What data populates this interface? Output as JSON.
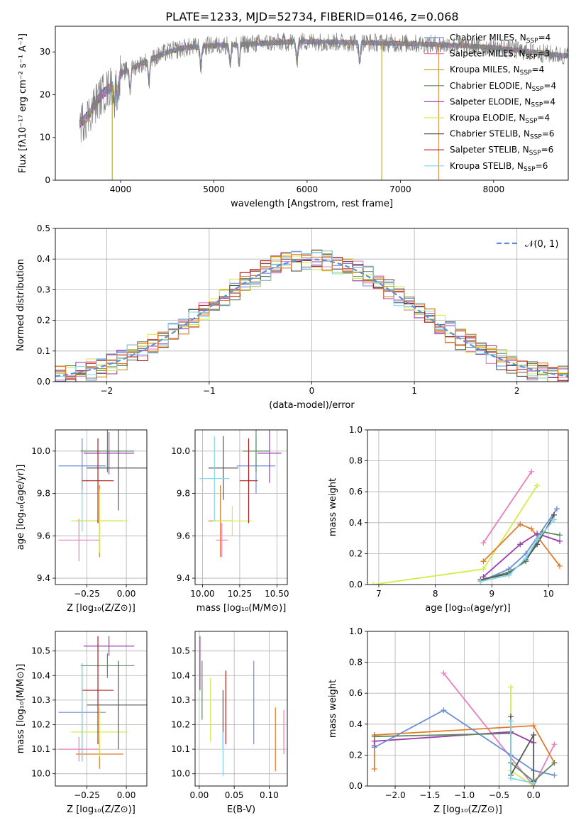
{
  "figure": {
    "title": "PLATE=1233, MJD=52734, FIBERID=0146, z=0.068"
  },
  "chart_data": [
    {
      "id": "spectrum",
      "type": "line",
      "xlabel": "wavelength [Angstrom, rest frame]",
      "ylabel": "Flux [fλ10⁻¹⁷ erg cm⁻² s⁻¹ A⁻¹]",
      "xlim": [
        3300,
        8800
      ],
      "ylim": [
        0,
        36
      ],
      "xticks": [
        4000,
        5000,
        6000,
        7000,
        8000
      ],
      "yticks": [
        0,
        10,
        20,
        30
      ],
      "observed_color": "#808080",
      "legend_position": "upper right",
      "series": [
        {
          "name": "Chabrier MILES, N_SSP=4",
          "color": "#6a8fd6"
        },
        {
          "name": "Salpeter MILES, N_SSP=3",
          "color": "#e57fbf"
        },
        {
          "name": "Kroupa MILES, N_SSP=4",
          "color": "#b59a17"
        },
        {
          "name": "Chabrier ELODIE, N_SSP=4",
          "color": "#5e8a5e"
        },
        {
          "name": "Salpeter ELODIE, N_SSP=4",
          "color": "#9b3db0"
        },
        {
          "name": "Kroupa ELODIE, N_SSP=4",
          "color": "#d4ec4a"
        },
        {
          "name": "Chabrier STELIB, N_SSP=6",
          "color": "#555555"
        },
        {
          "name": "Salpeter STELIB, N_SSP=6",
          "color": "#b01c1c"
        },
        {
          "name": "Kroupa STELIB, N_SSP=6",
          "color": "#7fd8e8"
        }
      ],
      "continuum": {
        "x": [
          3550,
          3600,
          3650,
          3700,
          3800,
          3900,
          4000,
          4100,
          4200,
          4300,
          4500,
          4700,
          5000,
          5300,
          5500,
          5800,
          6000,
          6300,
          6600,
          7000,
          7300,
          7600,
          7800,
          8000,
          8200,
          8400,
          8600,
          8800
        ],
        "y": [
          13,
          14,
          15,
          17,
          20,
          22,
          25,
          26,
          27,
          28,
          30,
          31,
          31.5,
          31.8,
          32,
          32.3,
          32.4,
          32.3,
          32.2,
          32,
          31.8,
          31.5,
          31.3,
          31,
          30.5,
          30,
          29.5,
          29
        ]
      }
    },
    {
      "id": "residuals",
      "type": "histogram",
      "xlabel": "(data-model)/error",
      "ylabel": "Normed distribution",
      "xlim": [
        -2.5,
        2.5
      ],
      "ylim": [
        0,
        0.5
      ],
      "xticks": [
        -2,
        -1,
        0,
        1,
        2
      ],
      "yticks": [
        0.0,
        0.1,
        0.2,
        0.3,
        0.4,
        0.5
      ],
      "grid": true,
      "reference": {
        "name": "𝒩(0, 1)",
        "color": "#5b8fd8"
      },
      "legend_position": "upper right"
    },
    {
      "id": "age_vs_Z",
      "type": "scatter",
      "xlabel": "Z [log₁₀(Z/Z⊙)]",
      "ylabel": "age  [log₁₀(age/yr)]",
      "xlim": [
        -0.45,
        0.13
      ],
      "ylim": [
        9.37,
        10.1
      ],
      "xticks": [
        -0.25,
        0.0
      ],
      "yticks": [
        9.4,
        9.6,
        9.8,
        10.0
      ],
      "grid": true,
      "points": [
        {
          "x": -0.28,
          "xerr": 0.15,
          "y": 9.93,
          "yerr": 0.13,
          "color": "#6a8fd6"
        },
        {
          "x": -0.3,
          "xerr": 0.13,
          "y": 9.58,
          "yerr": 0.1,
          "color": "#e57fbf"
        },
        {
          "x": -0.17,
          "xerr": 0.15,
          "y": 9.67,
          "yerr": 0.17,
          "color": "#e07b2a"
        },
        {
          "x": -0.12,
          "xerr": 0.17,
          "y": 10.0,
          "yerr": 0.1,
          "color": "#5e8a5e"
        },
        {
          "x": -0.11,
          "xerr": 0.16,
          "y": 9.99,
          "yerr": 0.1,
          "color": "#9b3db0"
        },
        {
          "x": -0.17,
          "xerr": 0.18,
          "y": 9.67,
          "yerr": 0.15,
          "color": "#d4ec4a"
        },
        {
          "x": -0.05,
          "xerr": 0.2,
          "y": 9.92,
          "yerr": 0.2,
          "color": "#555555"
        },
        {
          "x": -0.18,
          "xerr": 0.1,
          "y": 9.86,
          "yerr": 0.2,
          "color": "#b01c1c"
        },
        {
          "x": -0.28,
          "xerr": 0.0,
          "y": 9.72,
          "yerr": 0.1,
          "color": "#7fd8e8"
        }
      ]
    },
    {
      "id": "age_vs_mass",
      "type": "scatter",
      "xlabel": "mass [log₁₀(M/M⊙)]",
      "ylabel": "",
      "xlim": [
        9.95,
        10.57
      ],
      "ylim": [
        9.37,
        10.1
      ],
      "xticks": [
        10.0,
        10.25,
        10.5
      ],
      "yticks": [
        9.4,
        9.6,
        9.8,
        10.0
      ],
      "grid": true,
      "points": [
        {
          "x": 10.36,
          "xerr": 0.13,
          "y": 9.93,
          "yerr": 0.13,
          "color": "#6a8fd6"
        },
        {
          "x": 10.13,
          "xerr": 0.04,
          "y": 9.58,
          "yerr": 0.08,
          "color": "#e57fbf"
        },
        {
          "x": 10.12,
          "xerr": 0.08,
          "y": 9.67,
          "yerr": 0.17,
          "color": "#e07b2a"
        },
        {
          "x": 10.36,
          "xerr": 0.09,
          "y": 10.0,
          "yerr": 0.1,
          "color": "#5e8a5e"
        },
        {
          "x": 10.45,
          "xerr": 0.08,
          "y": 9.99,
          "yerr": 0.14,
          "color": "#9b3db0"
        },
        {
          "x": 10.2,
          "xerr": 0.13,
          "y": 9.67,
          "yerr": 0.07,
          "color": "#d4ec4a"
        },
        {
          "x": 10.14,
          "xerr": 0.1,
          "y": 9.92,
          "yerr": 0.15,
          "color": "#555555"
        },
        {
          "x": 10.31,
          "xerr": 0.06,
          "y": 9.86,
          "yerr": 0.2,
          "color": "#b01c1c"
        },
        {
          "x": 10.08,
          "xerr": 0.1,
          "y": 9.87,
          "yerr": 0.2,
          "color": "#7fd8e8"
        }
      ]
    },
    {
      "id": "mass_weight_vs_age",
      "type": "line",
      "xlabel": "age  [log₁₀(age/yr)]",
      "ylabel": "mass weight",
      "xlim": [
        6.8,
        10.35
      ],
      "ylim": [
        0,
        1.0
      ],
      "xticks": [
        7,
        8,
        9,
        10
      ],
      "yticks": [
        0.0,
        0.2,
        0.4,
        0.6,
        0.8,
        1.0
      ],
      "grid": true,
      "series": [
        {
          "color": "#e57fbf",
          "x": [
            8.85,
            9.7
          ],
          "y": [
            0.27,
            0.73
          ]
        },
        {
          "color": "#d4ec4a",
          "x": [
            6.9,
            8.85,
            9.8
          ],
          "y": [
            0.0,
            0.1,
            0.64
          ]
        },
        {
          "color": "#e07b2a",
          "x": [
            8.85,
            9.5,
            9.7,
            10.2
          ],
          "y": [
            0.15,
            0.39,
            0.36,
            0.12
          ]
        },
        {
          "color": "#9b3db0",
          "x": [
            8.85,
            9.5,
            9.8,
            10.2
          ],
          "y": [
            0.05,
            0.26,
            0.33,
            0.28
          ]
        },
        {
          "color": "#6a8fd6",
          "x": [
            8.8,
            9.3,
            9.6,
            10.15
          ],
          "y": [
            0.02,
            0.1,
            0.2,
            0.49
          ]
        },
        {
          "color": "#5e8a5e",
          "x": [
            8.8,
            9.3,
            9.6,
            9.9,
            10.2
          ],
          "y": [
            0.03,
            0.08,
            0.15,
            0.34,
            0.32
          ]
        },
        {
          "color": "#555555",
          "x": [
            8.8,
            9.3,
            9.6,
            9.8,
            10.1
          ],
          "y": [
            0.03,
            0.07,
            0.16,
            0.26,
            0.45
          ]
        },
        {
          "color": "#7fd8e8",
          "x": [
            8.8,
            9.3,
            9.6,
            9.8,
            10.1
          ],
          "y": [
            0.02,
            0.06,
            0.17,
            0.29,
            0.42
          ]
        }
      ]
    },
    {
      "id": "mass_vs_Z",
      "type": "scatter",
      "xlabel": "Z [log₁₀(Z/Z⊙)]",
      "ylabel": "mass [log₁₀(M/M⊙)]",
      "xlim": [
        -0.45,
        0.13
      ],
      "ylim": [
        9.95,
        10.58
      ],
      "xticks": [
        -0.25,
        0.0
      ],
      "yticks": [
        10.0,
        10.1,
        10.2,
        10.3,
        10.4,
        10.5
      ],
      "grid": true,
      "points": [
        {
          "x": -0.28,
          "xerr": 0.15,
          "y": 10.25,
          "yerr": 0.2,
          "color": "#6a8fd6"
        },
        {
          "x": -0.3,
          "xerr": 0.13,
          "y": 10.1,
          "yerr": 0.05,
          "color": "#e57fbf"
        },
        {
          "x": -0.17,
          "xerr": 0.15,
          "y": 10.08,
          "yerr": 0.06,
          "color": "#e07b2a"
        },
        {
          "x": -0.12,
          "xerr": 0.17,
          "y": 10.44,
          "yerr": 0.05,
          "color": "#5e8a5e"
        },
        {
          "x": -0.11,
          "xerr": 0.16,
          "y": 10.52,
          "yerr": 0.04,
          "color": "#9b3db0"
        },
        {
          "x": -0.17,
          "xerr": 0.18,
          "y": 10.17,
          "yerr": 0.1,
          "color": "#d4ec4a"
        },
        {
          "x": -0.05,
          "xerr": 0.2,
          "y": 10.28,
          "yerr": 0.18,
          "color": "#555555"
        },
        {
          "x": -0.18,
          "xerr": 0.1,
          "y": 10.34,
          "yerr": 0.22,
          "color": "#b01c1c"
        },
        {
          "x": -0.28,
          "xerr": 0.0,
          "y": 10.25,
          "yerr": 0.2,
          "color": "#7fd8e8"
        }
      ]
    },
    {
      "id": "mass_vs_EBV",
      "type": "scatter",
      "xlabel": "E(B-V)",
      "ylabel": "",
      "xlim": [
        -0.006,
        0.126
      ],
      "ylim": [
        9.95,
        10.58
      ],
      "xticks": [
        0.0,
        0.05,
        0.1
      ],
      "yticks": [
        10.0,
        10.1,
        10.2,
        10.3,
        10.4,
        10.5
      ],
      "grid": true,
      "points": [
        {
          "x": 0.078,
          "y": 10.29,
          "yerr": 0.17,
          "color": "#6a8fd6"
        },
        {
          "x": 0.121,
          "y": 10.17,
          "yerr": 0.09,
          "color": "#e57fbf"
        },
        {
          "x": 0.109,
          "y": 10.14,
          "yerr": 0.13,
          "color": "#e07b2a"
        },
        {
          "x": 0.004,
          "y": 10.34,
          "yerr": 0.12,
          "color": "#5e8a5e"
        },
        {
          "x": 0.001,
          "y": 10.45,
          "yerr": 0.11,
          "color": "#9b3db0"
        },
        {
          "x": 0.016,
          "y": 10.26,
          "yerr": 0.13,
          "color": "#d4ec4a"
        },
        {
          "x": 0.034,
          "y": 10.22,
          "yerr": 0.12,
          "color": "#555555"
        },
        {
          "x": 0.038,
          "y": 10.27,
          "yerr": 0.15,
          "color": "#b01c1c"
        },
        {
          "x": 0.034,
          "y": 10.08,
          "yerr": 0.09,
          "color": "#7fd8e8"
        }
      ]
    },
    {
      "id": "mass_weight_vs_Z",
      "type": "line",
      "xlabel": "Z [log₁₀(Z/Z⊙)]",
      "ylabel": "mass weight",
      "xlim": [
        -2.4,
        0.5
      ],
      "ylim": [
        0,
        1.0
      ],
      "xticks": [
        -2.0,
        -1.5,
        -1.0,
        -0.5,
        0.0
      ],
      "yticks": [
        0.0,
        0.2,
        0.4,
        0.6,
        0.8,
        1.0
      ],
      "grid": true,
      "series": [
        {
          "color": "#e57fbf",
          "x": [
            -1.3,
            0.0,
            0.3
          ],
          "y": [
            0.73,
            0.0,
            0.27
          ]
        },
        {
          "color": "#d4ec4a",
          "x": [
            -0.33,
            -0.33,
            0.0
          ],
          "y": [
            0.64,
            0.1,
            0.0
          ]
        },
        {
          "color": "#e07b2a",
          "x": [
            -2.3,
            -2.3,
            0.0,
            0.3
          ],
          "y": [
            0.11,
            0.33,
            0.39,
            0.15
          ]
        },
        {
          "color": "#9b3db0",
          "x": [
            -2.3,
            -2.3,
            -0.33,
            0.0
          ],
          "y": [
            0.26,
            0.29,
            0.35,
            0.28
          ]
        },
        {
          "color": "#6a8fd6",
          "x": [
            -2.3,
            -1.3,
            -0.33,
            0.0,
            0.3
          ],
          "y": [
            0.25,
            0.49,
            0.2,
            0.1,
            0.07
          ]
        },
        {
          "color": "#5e8a5e",
          "x": [
            -2.3,
            -0.33,
            -0.33,
            0.0,
            0.3
          ],
          "y": [
            0.32,
            0.34,
            0.15,
            0.03,
            0.15
          ]
        },
        {
          "color": "#555555",
          "x": [
            -0.33,
            -0.33,
            0.0,
            0.0
          ],
          "y": [
            0.45,
            0.07,
            0.33,
            0.03
          ]
        },
        {
          "color": "#7fd8e8",
          "x": [
            -0.33,
            -0.33,
            0.0
          ],
          "y": [
            0.42,
            0.05,
            0.02
          ]
        }
      ]
    }
  ]
}
